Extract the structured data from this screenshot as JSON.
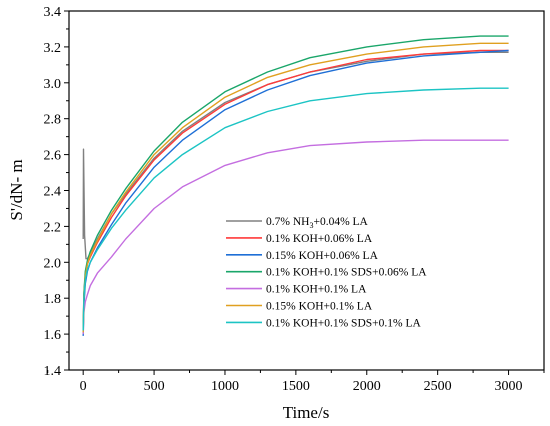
{
  "chart_data": {
    "type": "line",
    "xlabel": "Time/s",
    "ylabel": "S'/dN- m",
    "xlim": [
      -100,
      3250
    ],
    "ylim": [
      1.4,
      3.4
    ],
    "xticks": [
      0,
      500,
      1000,
      1500,
      2000,
      2500,
      3000
    ],
    "yticks": [
      1.4,
      1.6,
      1.8,
      2.0,
      2.2,
      2.4,
      2.6,
      2.8,
      3.0,
      3.2,
      3.4
    ],
    "xtick_labels": [
      "0",
      "500",
      "1000",
      "1500",
      "2000",
      "2500",
      "3000"
    ],
    "ytick_labels": [
      "1.4",
      "1.6",
      "1.8",
      "2.0",
      "2.2",
      "2.4",
      "2.6",
      "2.8",
      "3.0",
      "3.2",
      "3.4"
    ],
    "grid": false,
    "legend_position": "lower-center",
    "series": [
      {
        "name": "0.7% NH3+0.04% LA",
        "legend_parts": [
          [
            "0.7% NH",
            "normal"
          ],
          [
            "3",
            "sub"
          ],
          [
            "+0.04% LA",
            "normal"
          ]
        ],
        "color": "#808080",
        "x": [
          0,
          2,
          10,
          20,
          30,
          50,
          100,
          200,
          300,
          500,
          700,
          1000,
          1300,
          1600,
          2000,
          2400,
          2800,
          3000
        ],
        "y": [
          2.13,
          2.63,
          2.15,
          2.02,
          2.02,
          2.05,
          2.13,
          2.27,
          2.38,
          2.58,
          2.73,
          2.89,
          2.99,
          3.06,
          3.12,
          3.16,
          3.17,
          3.17
        ]
      },
      {
        "name": "0.1% KOH+0.06% LA",
        "color": "#ff3a3a",
        "x": [
          0,
          5,
          15,
          30,
          50,
          100,
          200,
          300,
          500,
          700,
          1000,
          1300,
          1600,
          2000,
          2400,
          2800,
          3000
        ],
        "y": [
          1.62,
          1.82,
          1.93,
          1.99,
          2.03,
          2.11,
          2.25,
          2.37,
          2.57,
          2.72,
          2.88,
          2.99,
          3.06,
          3.13,
          3.16,
          3.18,
          3.18
        ]
      },
      {
        "name": "0.15% KOH+0.06% LA",
        "color": "#1f6fd6",
        "x": [
          0,
          5,
          15,
          30,
          50,
          100,
          200,
          300,
          500,
          700,
          1000,
          1300,
          1600,
          2000,
          2400,
          2800,
          3000
        ],
        "y": [
          1.59,
          1.76,
          1.88,
          1.95,
          2.0,
          2.08,
          2.21,
          2.33,
          2.53,
          2.68,
          2.85,
          2.96,
          3.04,
          3.11,
          3.15,
          3.17,
          3.18
        ]
      },
      {
        "name": "0.1% KOH+0.1% SDS+0.06% LA",
        "color": "#1aa66a",
        "x": [
          0,
          5,
          15,
          30,
          50,
          100,
          200,
          300,
          500,
          700,
          1000,
          1300,
          1600,
          2000,
          2400,
          2800,
          3000
        ],
        "y": [
          1.63,
          1.83,
          1.95,
          2.01,
          2.06,
          2.15,
          2.29,
          2.41,
          2.62,
          2.78,
          2.95,
          3.06,
          3.14,
          3.2,
          3.24,
          3.26,
          3.26
        ]
      },
      {
        "name": "0.1% KOH+0.1% LA",
        "color": "#c46ee0",
        "x": [
          0,
          5,
          15,
          30,
          50,
          100,
          200,
          300,
          500,
          700,
          1000,
          1300,
          1600,
          2000,
          2400,
          2800,
          3000
        ],
        "y": [
          1.6,
          1.72,
          1.78,
          1.82,
          1.87,
          1.94,
          2.03,
          2.13,
          2.3,
          2.42,
          2.54,
          2.61,
          2.65,
          2.67,
          2.68,
          2.68,
          2.68
        ]
      },
      {
        "name": "0.15% KOH+0.1% LA",
        "color": "#e0a020",
        "x": [
          0,
          5,
          15,
          30,
          50,
          100,
          200,
          300,
          500,
          700,
          1000,
          1300,
          1600,
          2000,
          2400,
          2800,
          3000
        ],
        "y": [
          1.61,
          1.8,
          1.92,
          1.99,
          2.04,
          2.12,
          2.27,
          2.39,
          2.6,
          2.75,
          2.92,
          3.03,
          3.1,
          3.16,
          3.2,
          3.22,
          3.22
        ]
      },
      {
        "name": "0.1% KOH+0.1% SDS+0.1% LA",
        "color": "#1cc4c4",
        "x": [
          0,
          5,
          15,
          30,
          50,
          100,
          200,
          300,
          500,
          700,
          1000,
          1300,
          1600,
          2000,
          2400,
          2800,
          3000
        ],
        "y": [
          1.62,
          1.8,
          1.9,
          1.96,
          2.0,
          2.07,
          2.19,
          2.29,
          2.47,
          2.6,
          2.75,
          2.84,
          2.9,
          2.94,
          2.96,
          2.97,
          2.97
        ]
      }
    ]
  }
}
